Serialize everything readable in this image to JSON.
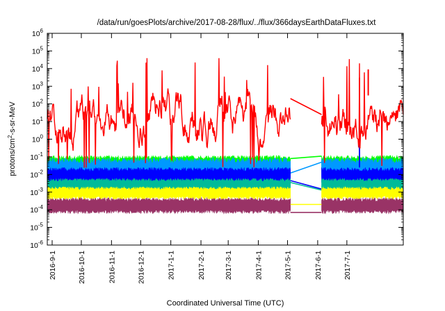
{
  "chart_data": {
    "type": "area",
    "title": "/data/run/goesPlots/archive/2017-08-28/flux/../flux/366daysEarthDataFluxes.txt",
    "xlabel": "Coordinated Universal Time (UTC)",
    "ylabel_main": "protons/cm",
    "ylabel_sup": "2",
    "ylabel_rest": "-s-sr-MeV",
    "yscale": "log",
    "ylim": [
      1e-06,
      1000000.0
    ],
    "y_ticks": [
      {
        "exp": -6,
        "base": "10",
        "sup": "-6"
      },
      {
        "exp": -5,
        "base": "10",
        "sup": "-5"
      },
      {
        "exp": -4,
        "base": "10",
        "sup": "-4"
      },
      {
        "exp": -3,
        "base": "10",
        "sup": "-3"
      },
      {
        "exp": -2,
        "base": "10",
        "sup": "-2"
      },
      {
        "exp": -1,
        "base": "10",
        "sup": "-1"
      },
      {
        "exp": 0,
        "base": "10",
        "sup": "0"
      },
      {
        "exp": 1,
        "base": "10",
        "sup": "1"
      },
      {
        "exp": 2,
        "base": "10",
        "sup": "2"
      },
      {
        "exp": 3,
        "base": "10",
        "sup": "3"
      },
      {
        "exp": 4,
        "base": "10",
        "sup": "4"
      },
      {
        "exp": 5,
        "base": "10",
        "sup": "5"
      },
      {
        "exp": 6,
        "base": "10",
        "sup": "6"
      }
    ],
    "xlim": [
      "2016-08-27",
      "2017-08-28"
    ],
    "x_ticks": [
      "2016-9-1",
      "2016-10-1",
      "2016-11-1",
      "2016-12-1",
      "2017-1-1",
      "2017-2-1",
      "2017-3-1",
      "2017-4-1",
      "2017-5-1",
      "2017-6-1",
      "2017-7-1"
    ],
    "x_tick_dates": [
      "2016-09-01",
      "2016-10-01",
      "2016-11-01",
      "2016-12-01",
      "2017-01-01",
      "2017-02-01",
      "2017-03-01",
      "2017-04-01",
      "2017-05-01",
      "2017-06-01",
      "2017-07-01"
    ],
    "data_gap": [
      "2017-05-04",
      "2017-06-05"
    ],
    "series": [
      {
        "color": "#ff0000",
        "style": "spiky",
        "typical": [
          0.3,
          300
        ],
        "spike_max": 60000,
        "gap_line": [
          {
            "x": "2017-05-04",
            "y": 200
          },
          {
            "x": "2017-06-05",
            "y": 25
          }
        ],
        "events": [
          {
            "x": "2017-07-14",
            "y": 3000
          },
          {
            "x": "2017-07-23",
            "y": 9000
          }
        ]
      },
      {
        "color": "#00ff00",
        "style": "band",
        "range": [
          0.012,
          0.12
        ],
        "gap_line": [
          {
            "x": "2017-05-04",
            "y": 0.08
          },
          {
            "x": "2017-06-05",
            "y": 0.11
          }
        ],
        "events": [
          {
            "x": "2017-07-14",
            "y": 50
          }
        ]
      },
      {
        "color": "#0099ff",
        "style": "band",
        "range": [
          0.004,
          0.09
        ],
        "gap_line": [
          {
            "x": "2017-05-04",
            "y": 0.012
          },
          {
            "x": "2017-06-05",
            "y": 0.05
          }
        ],
        "events": [
          {
            "x": "2017-07-14",
            "y": 2
          }
        ]
      },
      {
        "color": "#00bb99",
        "style": "band",
        "range": [
          0.0012,
          0.006
        ],
        "gap_line": [
          {
            "x": "2017-05-04",
            "y": 0.0035
          },
          {
            "x": "2017-06-05",
            "y": 0.0013
          }
        ],
        "events": []
      },
      {
        "color": "#0000ff",
        "style": "band",
        "range": [
          0.003,
          0.025
        ],
        "gap_line": [
          {
            "x": "2017-05-04",
            "y": 0.0045
          },
          {
            "x": "2017-06-05",
            "y": 0.0015
          }
        ],
        "events": [
          {
            "x": "2017-07-14",
            "y": 1
          }
        ]
      },
      {
        "color": "#ffff00",
        "style": "band",
        "range": [
          0.0004,
          0.002
        ],
        "gap_line": [
          {
            "x": "2017-05-04",
            "y": 0.0002
          },
          {
            "x": "2017-06-05",
            "y": 0.0002
          }
        ],
        "events": []
      },
      {
        "color": "#993366",
        "style": "band",
        "range": [
          6e-05,
          0.0005
        ],
        "gap_line": [
          {
            "x": "2017-05-04",
            "y": 7e-05
          },
          {
            "x": "2017-06-05",
            "y": 7e-05
          }
        ],
        "events": []
      }
    ],
    "grid": false,
    "legend": "none"
  }
}
